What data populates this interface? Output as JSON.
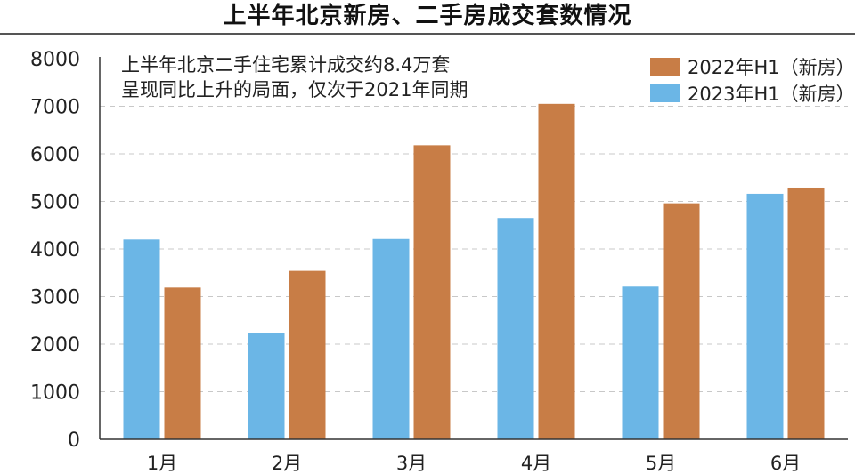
{
  "chart_data": {
    "type": "bar",
    "title": "上半年北京新房、二手房成交套数情况",
    "annotation": [
      "上半年北京二手住宅累计成交约8.4万套",
      "呈现同比上升的局面，仅次于2021年同期"
    ],
    "categories": [
      "1月",
      "2月",
      "3月",
      "4月",
      "5月",
      "6月"
    ],
    "series": [
      {
        "name": "2023年H1（新房）",
        "color": "#6bb6e6",
        "values": [
          4200,
          2230,
          4210,
          4650,
          3210,
          5160
        ]
      },
      {
        "name": "2022年H1（新房）",
        "color": "#c87d46",
        "values": [
          3190,
          3540,
          6180,
          7050,
          4960,
          5290
        ]
      }
    ],
    "legend": [
      {
        "name": "2022年H1（新房）",
        "color": "#c87d46"
      },
      {
        "name": "2023年H1（新房）",
        "color": "#6bb6e6"
      }
    ],
    "legend_position": "top-right",
    "ylim": [
      0,
      8000
    ],
    "yticks": [
      0,
      1000,
      2000,
      3000,
      4000,
      5000,
      6000,
      7000,
      8000
    ],
    "grid": "horizontal-dashed",
    "xlabel": "",
    "ylabel": ""
  }
}
